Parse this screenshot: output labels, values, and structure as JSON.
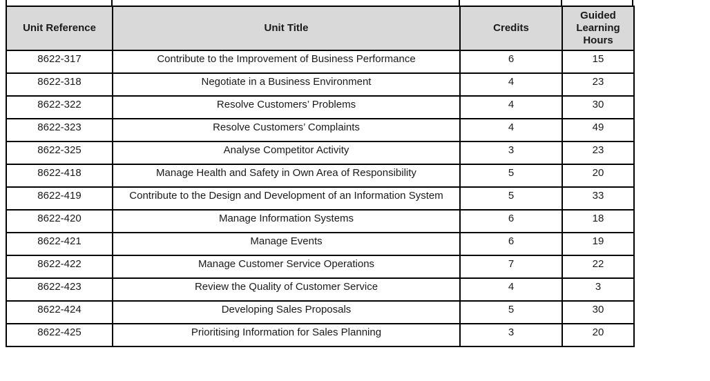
{
  "colors": {
    "header_bg": "#d9d9d9",
    "border": "#000000",
    "text": "#1a1a1a",
    "page_bg": "#ffffff"
  },
  "table": {
    "columns": [
      {
        "label": "Unit Reference"
      },
      {
        "label": "Unit Title"
      },
      {
        "label": "Credits"
      },
      {
        "label": "Guided Learning Hours"
      }
    ],
    "rows": [
      {
        "ref": "8622-317",
        "title": "Contribute to the Improvement of Business Performance",
        "credits": "6",
        "glh": "15"
      },
      {
        "ref": "8622-318",
        "title": "Negotiate in a Business Environment",
        "credits": "4",
        "glh": "23"
      },
      {
        "ref": "8622-322",
        "title": "Resolve Customers’ Problems",
        "credits": "4",
        "glh": "30"
      },
      {
        "ref": "8622-323",
        "title": "Resolve Customers’ Complaints",
        "credits": "4",
        "glh": "49"
      },
      {
        "ref": "8622-325",
        "title": "Analyse Competitor Activity",
        "credits": "3",
        "glh": "23"
      },
      {
        "ref": "8622-418",
        "title": "Manage Health and Safety in Own Area of Responsibility",
        "credits": "5",
        "glh": "20"
      },
      {
        "ref": "8622-419",
        "title": "Contribute to the Design and Development of an Information System",
        "credits": "5",
        "glh": "33"
      },
      {
        "ref": "8622-420",
        "title": "Manage Information Systems",
        "credits": "6",
        "glh": "18"
      },
      {
        "ref": "8622-421",
        "title": "Manage Events",
        "credits": "6",
        "glh": "19"
      },
      {
        "ref": "8622-422",
        "title": "Manage Customer Service Operations",
        "credits": "7",
        "glh": "22"
      },
      {
        "ref": "8622-423",
        "title": "Review the Quality of Customer Service",
        "credits": "4",
        "glh": "3"
      },
      {
        "ref": "8622-424",
        "title": "Developing Sales Proposals",
        "credits": "5",
        "glh": "30"
      },
      {
        "ref": "8622-425",
        "title": "Prioritising Information for Sales Planning",
        "credits": "3",
        "glh": "20"
      }
    ]
  }
}
